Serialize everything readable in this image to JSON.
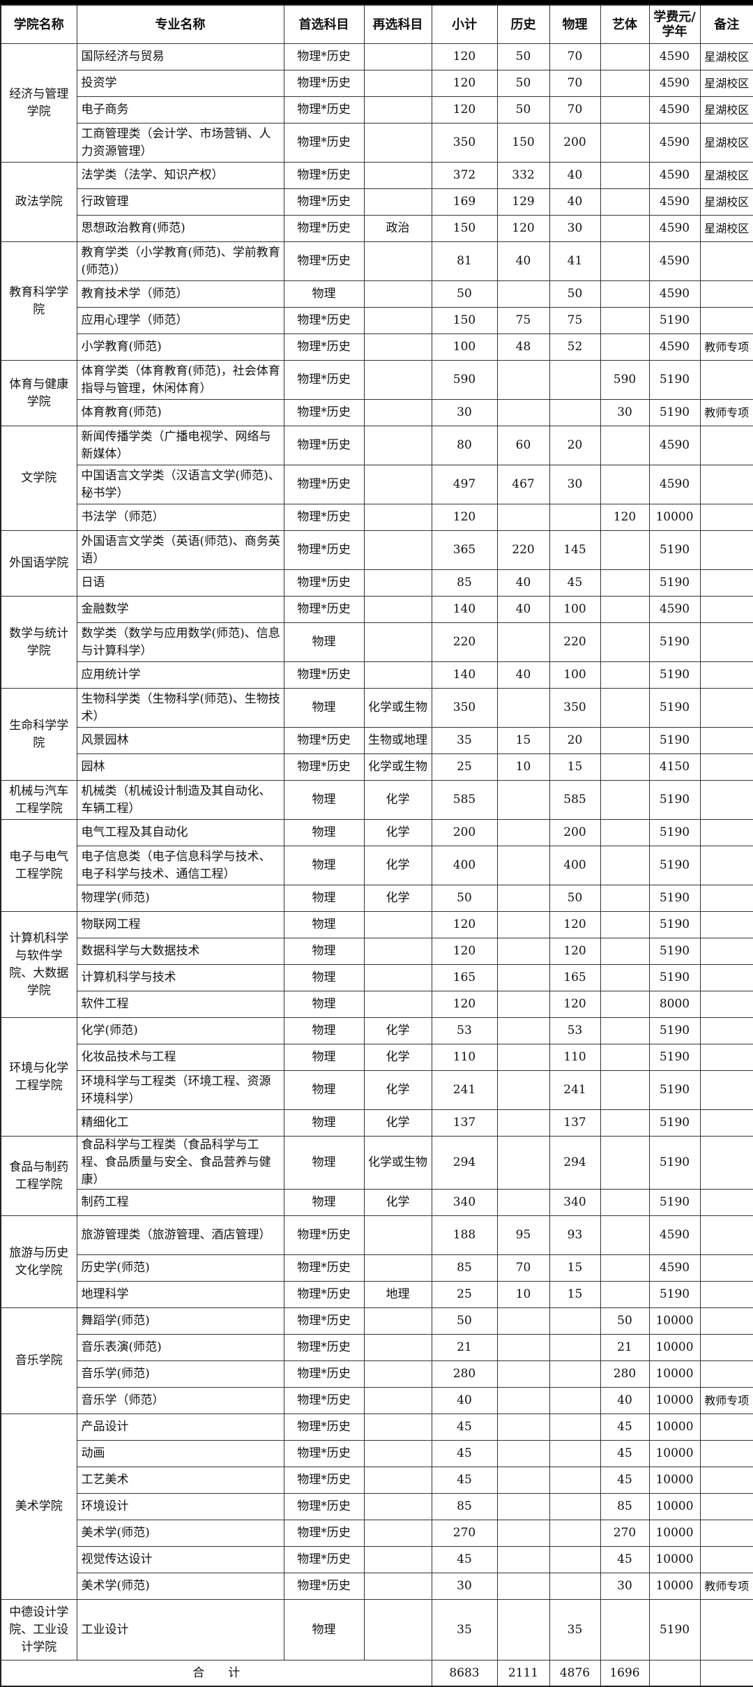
{
  "headers": [
    "学院名称",
    "专业名称",
    "首选科目",
    "再选科目",
    "小计",
    "历史",
    "物理",
    "艺体",
    "学费元/学年",
    "备注"
  ],
  "colleges": [
    {
      "name": "经济与管理学院",
      "majors": [
        {
          "name": "国际经济与贸易",
          "first": "物理*历史",
          "second": "",
          "total": "120",
          "history": "50",
          "physics": "70",
          "art": "",
          "fee": "4590",
          "note": "星湖校区"
        },
        {
          "name": "投资学",
          "first": "物理*历史",
          "second": "",
          "total": "120",
          "history": "50",
          "physics": "70",
          "art": "",
          "fee": "4590",
          "note": "星湖校区"
        },
        {
          "name": "电子商务",
          "first": "物理*历史",
          "second": "",
          "total": "120",
          "history": "50",
          "physics": "70",
          "art": "",
          "fee": "4590",
          "note": "星湖校区"
        },
        {
          "name": "工商管理类（会计学、市场营销、人力资源管理）",
          "first": "物理*历史",
          "second": "",
          "total": "350",
          "history": "150",
          "physics": "200",
          "art": "",
          "fee": "4590",
          "note": "星湖校区",
          "lines": 2
        }
      ]
    },
    {
      "name": "政法学院",
      "majors": [
        {
          "name": "法学类（法学、知识产权）",
          "first": "物理*历史",
          "second": "",
          "total": "372",
          "history": "332",
          "physics": "40",
          "art": "",
          "fee": "4590",
          "note": "星湖校区"
        },
        {
          "name": "行政管理",
          "first": "物理*历史",
          "second": "",
          "total": "169",
          "history": "129",
          "physics": "40",
          "art": "",
          "fee": "4590",
          "note": "星湖校区"
        },
        {
          "name": "思想政治教育(师范)",
          "first": "物理*历史",
          "second": "政治",
          "total": "150",
          "history": "120",
          "physics": "30",
          "art": "",
          "fee": "4590",
          "note": "星湖校区"
        }
      ]
    },
    {
      "name": "教育科学学院",
      "majors": [
        {
          "name": "教育学类（小学教育(师范)、学前教育(师范)）",
          "first": "物理*历史",
          "second": "",
          "total": "81",
          "history": "40",
          "physics": "41",
          "art": "",
          "fee": "4590",
          "note": "",
          "lines": 2
        },
        {
          "name": "教育技术学（师范）",
          "first": "物理",
          "second": "",
          "total": "50",
          "history": "",
          "physics": "50",
          "art": "",
          "fee": "4590",
          "note": ""
        },
        {
          "name": "应用心理学（师范）",
          "first": "物理*历史",
          "second": "",
          "total": "150",
          "history": "75",
          "physics": "75",
          "art": "",
          "fee": "5190",
          "note": ""
        },
        {
          "name": "小学教育(师范)",
          "first": "物理*历史",
          "second": "",
          "total": "100",
          "history": "48",
          "physics": "52",
          "art": "",
          "fee": "4590",
          "note": "教师专项"
        }
      ]
    },
    {
      "name": "体育与健康学院",
      "majors": [
        {
          "name": "体育学类（体育教育(师范)，社会体育指导与管理，休闲体育）",
          "first": "物理*历史",
          "second": "",
          "total": "590",
          "history": "",
          "physics": "",
          "art": "590",
          "fee": "5190",
          "note": "",
          "lines": 2
        },
        {
          "name": "体育教育(师范)",
          "first": "物理*历史",
          "second": "",
          "total": "30",
          "history": "",
          "physics": "",
          "art": "30",
          "fee": "5190",
          "note": "教师专项"
        }
      ]
    },
    {
      "name": "文学院",
      "majors": [
        {
          "name": "新闻传播学类（广播电视学、网络与新媒体）",
          "first": "物理*历史",
          "second": "",
          "total": "80",
          "history": "60",
          "physics": "20",
          "art": "",
          "fee": "4590",
          "note": "",
          "lines": 2
        },
        {
          "name": "中国语言文学类（汉语言文学(师范)、秘书学）",
          "first": "物理*历史",
          "second": "",
          "total": "497",
          "history": "467",
          "physics": "30",
          "art": "",
          "fee": "4590",
          "note": "",
          "lines": 2
        },
        {
          "name": "书法学（师范）",
          "first": "物理*历史",
          "second": "",
          "total": "120",
          "history": "",
          "physics": "",
          "art": "120",
          "fee": "10000",
          "note": ""
        }
      ]
    },
    {
      "name": "外国语学院",
      "majors": [
        {
          "name": "外国语言文学类（英语(师范)、商务英语）",
          "first": "物理*历史",
          "second": "",
          "total": "365",
          "history": "220",
          "physics": "145",
          "art": "",
          "fee": "5190",
          "note": "",
          "lines": 2
        },
        {
          "name": "日语",
          "first": "物理*历史",
          "second": "",
          "total": "85",
          "history": "40",
          "physics": "45",
          "art": "",
          "fee": "5190",
          "note": ""
        }
      ]
    },
    {
      "name": "数学与统计学院",
      "majors": [
        {
          "name": "金融数学",
          "first": "物理*历史",
          "second": "",
          "total": "140",
          "history": "40",
          "physics": "100",
          "art": "",
          "fee": "4590",
          "note": ""
        },
        {
          "name": "数学类（数学与应用数学(师范)、信息与计算科学）",
          "first": "物理",
          "second": "",
          "total": "220",
          "history": "",
          "physics": "220",
          "art": "",
          "fee": "5190",
          "note": "",
          "lines": 2
        },
        {
          "name": "应用统计学",
          "first": "物理*历史",
          "second": "",
          "total": "140",
          "history": "40",
          "physics": "100",
          "art": "",
          "fee": "5190",
          "note": ""
        }
      ]
    },
    {
      "name": "生命科学学院",
      "majors": [
        {
          "name": "生物科学类（生物科学(师范)、生物技术）",
          "first": "物理",
          "second": "化学或生物",
          "total": "350",
          "history": "",
          "physics": "350",
          "art": "",
          "fee": "5190",
          "note": "",
          "lines": 2
        },
        {
          "name": "风景园林",
          "first": "物理*历史",
          "second": "生物或地理",
          "total": "35",
          "history": "15",
          "physics": "20",
          "art": "",
          "fee": "5190",
          "note": ""
        },
        {
          "name": "园林",
          "first": "物理*历史",
          "second": "化学或生物",
          "total": "25",
          "history": "10",
          "physics": "15",
          "art": "",
          "fee": "4150",
          "note": ""
        }
      ]
    },
    {
      "name": "机械与汽车工程学院",
      "majors": [
        {
          "name": "机械类（机械设计制造及其自动化、车辆工程）",
          "first": "物理",
          "second": "化学",
          "total": "585",
          "history": "",
          "physics": "585",
          "art": "",
          "fee": "5190",
          "note": "",
          "lines": 2
        }
      ]
    },
    {
      "name": "电子与电气工程学院",
      "majors": [
        {
          "name": "电气工程及其自动化",
          "first": "物理",
          "second": "化学",
          "total": "200",
          "history": "",
          "physics": "200",
          "art": "",
          "fee": "5190",
          "note": ""
        },
        {
          "name": "电子信息类（电子信息科学与技术、电子科学与技术、通信工程）",
          "first": "物理",
          "second": "化学",
          "total": "400",
          "history": "",
          "physics": "400",
          "art": "",
          "fee": "5190",
          "note": "",
          "lines": 2
        },
        {
          "name": "物理学(师范)",
          "first": "物理",
          "second": "化学",
          "total": "50",
          "history": "",
          "physics": "50",
          "art": "",
          "fee": "5190",
          "note": ""
        }
      ]
    },
    {
      "name": "计算机科学与软件学院、大数据学院",
      "majors": [
        {
          "name": "物联网工程",
          "first": "物理",
          "second": "",
          "total": "120",
          "history": "",
          "physics": "120",
          "art": "",
          "fee": "5190",
          "note": ""
        },
        {
          "name": "数据科学与大数据技术",
          "first": "物理",
          "second": "",
          "total": "120",
          "history": "",
          "physics": "120",
          "art": "",
          "fee": "5190",
          "note": ""
        },
        {
          "name": "计算机科学与技术",
          "first": "物理",
          "second": "",
          "total": "165",
          "history": "",
          "physics": "165",
          "art": "",
          "fee": "5190",
          "note": ""
        },
        {
          "name": "软件工程",
          "first": "物理",
          "second": "",
          "total": "120",
          "history": "",
          "physics": "120",
          "art": "",
          "fee": "8000",
          "note": ""
        }
      ]
    },
    {
      "name": "环境与化学工程学院",
      "majors": [
        {
          "name": "化学(师范)",
          "first": "物理",
          "second": "化学",
          "total": "53",
          "history": "",
          "physics": "53",
          "art": "",
          "fee": "5190",
          "note": ""
        },
        {
          "name": "化妆品技术与工程",
          "first": "物理",
          "second": "化学",
          "total": "110",
          "history": "",
          "physics": "110",
          "art": "",
          "fee": "5190",
          "note": ""
        },
        {
          "name": "环境科学与工程类（环境工程、资源环境科学）",
          "first": "物理",
          "second": "化学",
          "total": "241",
          "history": "",
          "physics": "241",
          "art": "",
          "fee": "5190",
          "note": "",
          "lines": 2
        },
        {
          "name": "精细化工",
          "first": "物理",
          "second": "化学",
          "total": "137",
          "history": "",
          "physics": "137",
          "art": "",
          "fee": "5190",
          "note": ""
        }
      ]
    },
    {
      "name": "食品与制药工程学院",
      "majors": [
        {
          "name": "食品科学与工程类（食品科学与工程、食品质量与安全、食品营养与健康）",
          "first": "物理",
          "second": "化学或生物",
          "total": "294",
          "history": "",
          "physics": "294",
          "art": "",
          "fee": "5190",
          "note": "",
          "lines": 3
        },
        {
          "name": "制药工程",
          "first": "物理",
          "second": "化学",
          "total": "340",
          "history": "",
          "physics": "340",
          "art": "",
          "fee": "5190",
          "note": ""
        }
      ]
    },
    {
      "name": "旅游与历史文化学院",
      "majors": [
        {
          "name": "旅游管理类（旅游管理、酒店管理）",
          "first": "物理*历史",
          "second": "",
          "total": "188",
          "history": "95",
          "physics": "93",
          "art": "",
          "fee": "4590",
          "note": "",
          "lines": 2
        },
        {
          "name": "历史学(师范)",
          "first": "物理*历史",
          "second": "",
          "total": "85",
          "history": "70",
          "physics": "15",
          "art": "",
          "fee": "4590",
          "note": ""
        },
        {
          "name": "地理科学",
          "first": "物理*历史",
          "second": "地理",
          "total": "25",
          "history": "10",
          "physics": "15",
          "art": "",
          "fee": "5190",
          "note": ""
        }
      ]
    },
    {
      "name": "音乐学院",
      "majors": [
        {
          "name": "舞蹈学(师范)",
          "first": "物理*历史",
          "second": "",
          "total": "50",
          "history": "",
          "physics": "",
          "art": "50",
          "fee": "10000",
          "note": ""
        },
        {
          "name": "音乐表演(师范)",
          "first": "物理*历史",
          "second": "",
          "total": "21",
          "history": "",
          "physics": "",
          "art": "21",
          "fee": "10000",
          "note": ""
        },
        {
          "name": "音乐学(师范)",
          "first": "物理*历史",
          "second": "",
          "total": "280",
          "history": "",
          "physics": "",
          "art": "280",
          "fee": "10000",
          "note": ""
        },
        {
          "name": "音乐学（师范）",
          "first": "物理*历史",
          "second": "",
          "total": "40",
          "history": "",
          "physics": "",
          "art": "40",
          "fee": "10000",
          "note": "教师专项"
        }
      ]
    },
    {
      "name": "美术学院",
      "majors": [
        {
          "name": "产品设计",
          "first": "物理*历史",
          "second": "",
          "total": "45",
          "history": "",
          "physics": "",
          "art": "45",
          "fee": "10000",
          "note": ""
        },
        {
          "name": "动画",
          "first": "物理*历史",
          "second": "",
          "total": "45",
          "history": "",
          "physics": "",
          "art": "45",
          "fee": "10000",
          "note": ""
        },
        {
          "name": "工艺美术",
          "first": "物理*历史",
          "second": "",
          "total": "45",
          "history": "",
          "physics": "",
          "art": "45",
          "fee": "10000",
          "note": ""
        },
        {
          "name": "环境设计",
          "first": "物理*历史",
          "second": "",
          "total": "85",
          "history": "",
          "physics": "",
          "art": "85",
          "fee": "10000",
          "note": ""
        },
        {
          "name": "美术学(师范)",
          "first": "物理*历史",
          "second": "",
          "total": "270",
          "history": "",
          "physics": "",
          "art": "270",
          "fee": "10000",
          "note": ""
        },
        {
          "name": "视觉传达设计",
          "first": "物理*历史",
          "second": "",
          "total": "45",
          "history": "",
          "physics": "",
          "art": "45",
          "fee": "10000",
          "note": ""
        },
        {
          "name": "美术学(师范)",
          "first": "物理*历史",
          "second": "",
          "total": "30",
          "history": "",
          "physics": "",
          "art": "30",
          "fee": "10000",
          "note": "教师专项"
        }
      ]
    },
    {
      "name": "中德设计学院、工业设计学院",
      "majors": [
        {
          "name": "工业设计",
          "first": "物理",
          "second": "",
          "total": "35",
          "history": "",
          "physics": "35",
          "art": "",
          "fee": "5190",
          "note": "",
          "lines": 4
        }
      ]
    }
  ],
  "totals": {
    "label": "合　　计",
    "total": "8683",
    "history": "2111",
    "physics": "4876",
    "art": "1696"
  }
}
